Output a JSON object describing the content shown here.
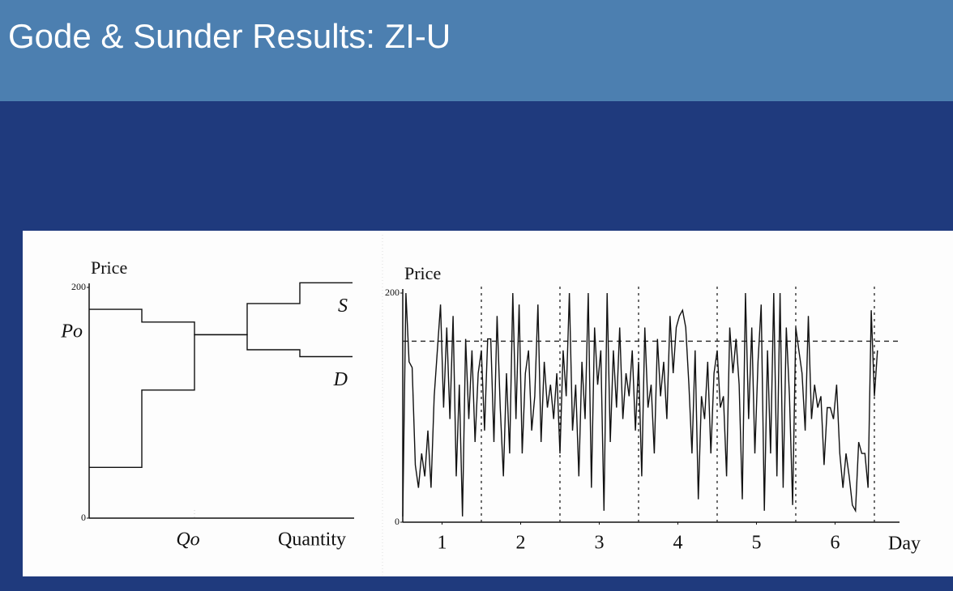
{
  "slide_title": "Gode & Sunder Results: ZI-U",
  "chart_data": [
    {
      "type": "line",
      "y_label": "Price",
      "x_label": "Quantity",
      "annotations": [
        "Po",
        "Qo"
      ],
      "xlim": [
        0,
        10
      ],
      "ylim": [
        0,
        200
      ],
      "yticks": [
        0,
        200
      ],
      "vlines": [
        4
      ],
      "series": [
        {
          "name": "S",
          "color": "#111111",
          "x": [
            0,
            2,
            2,
            4,
            4,
            6,
            6,
            8,
            8,
            10
          ],
          "values": [
            44,
            44,
            111,
            111,
            159,
            159,
            186,
            186,
            204,
            204
          ]
        },
        {
          "name": "D",
          "color": "#111111",
          "x": [
            0,
            2,
            2,
            4,
            4,
            6,
            6,
            8,
            8,
            10
          ],
          "values": [
            181,
            181,
            170,
            170,
            159,
            159,
            146,
            146,
            140,
            140
          ]
        }
      ]
    },
    {
      "type": "line",
      "y_label": "Price",
      "x_label": "Day",
      "xlim": [
        0,
        6.32
      ],
      "ylim": [
        0,
        200
      ],
      "yticks": [
        0,
        200
      ],
      "xticks": [
        {
          "value": 0.5,
          "label": "1"
        },
        {
          "value": 1.5,
          "label": "2"
        },
        {
          "value": 2.5,
          "label": "3"
        },
        {
          "value": 3.5,
          "label": "4"
        },
        {
          "value": 4.5,
          "label": "5"
        },
        {
          "value": 5.5,
          "label": "6"
        }
      ],
      "vlines": [
        1,
        2,
        3,
        4,
        5,
        6
      ],
      "hlines": [
        158
      ],
      "series": [
        {
          "color": "#111111",
          "x": [
            0,
            0.04,
            0.08,
            0.12,
            0.16,
            0.2,
            0.24,
            0.28,
            0.32,
            0.36,
            0.4,
            0.44,
            0.48,
            0.52,
            0.56,
            0.6,
            0.64,
            0.68,
            0.72,
            0.76,
            0.8,
            0.84,
            0.88,
            0.92,
            0.96,
            1,
            1.04,
            1.08,
            1.12,
            1.16,
            1.2,
            1.24,
            1.28,
            1.32,
            1.36,
            1.4,
            1.44,
            1.48,
            1.52,
            1.56,
            1.6,
            1.64,
            1.68,
            1.72,
            1.76,
            1.8,
            1.84,
            1.88,
            1.92,
            1.96,
            2,
            2.04,
            2.08,
            2.12,
            2.16,
            2.2,
            2.24,
            2.28,
            2.32,
            2.36,
            2.4,
            2.44,
            2.48,
            2.52,
            2.56,
            2.6,
            2.64,
            2.68,
            2.72,
            2.76,
            2.8,
            2.84,
            2.88,
            2.92,
            2.96,
            3,
            3.04,
            3.08,
            3.12,
            3.16,
            3.2,
            3.24,
            3.28,
            3.32,
            3.36,
            3.4,
            3.44,
            3.48,
            3.52,
            3.56,
            3.6,
            3.64,
            3.68,
            3.72,
            3.76,
            3.8,
            3.84,
            3.88,
            3.92,
            3.96,
            4,
            4.04,
            4.08,
            4.12,
            4.16,
            4.2,
            4.24,
            4.28,
            4.32,
            4.36,
            4.4,
            4.44,
            4.48,
            4.52,
            4.56,
            4.6,
            4.64,
            4.68,
            4.72,
            4.76,
            4.8,
            4.84,
            4.88,
            4.92,
            4.96,
            5,
            5.04,
            5.08,
            5.12,
            5.16,
            5.2,
            5.24,
            5.28,
            5.32,
            5.36,
            5.4,
            5.44,
            5.48,
            5.52,
            5.56,
            5.6,
            5.64,
            5.68,
            5.72,
            5.76,
            5.8,
            5.84,
            5.88,
            5.92,
            5.96,
            6,
            6.04
          ],
          "values": [
            5,
            200,
            140,
            135,
            50,
            30,
            60,
            40,
            80,
            30,
            110,
            150,
            190,
            100,
            170,
            90,
            180,
            40,
            120,
            5,
            160,
            90,
            150,
            70,
            130,
            150,
            80,
            160,
            160,
            70,
            180,
            100,
            40,
            130,
            60,
            200,
            90,
            190,
            60,
            130,
            150,
            80,
            110,
            190,
            70,
            140,
            100,
            120,
            90,
            130,
            60,
            150,
            110,
            200,
            80,
            120,
            40,
            140,
            90,
            200,
            30,
            170,
            120,
            150,
            10,
            200,
            70,
            150,
            100,
            170,
            90,
            130,
            110,
            150,
            80,
            140,
            40,
            170,
            100,
            120,
            60,
            160,
            110,
            140,
            90,
            180,
            130,
            170,
            180,
            185,
            170,
            120,
            60,
            150,
            20,
            110,
            90,
            140,
            60,
            130,
            150,
            100,
            110,
            40,
            170,
            130,
            160,
            120,
            20,
            200,
            90,
            170,
            60,
            140,
            190,
            10,
            150,
            60,
            200,
            40,
            200,
            30,
            170,
            110,
            15,
            170,
            150,
            130,
            80,
            180,
            90,
            120,
            100,
            110,
            50,
            100,
            100,
            90,
            120,
            60,
            30,
            60,
            40,
            15,
            10,
            70,
            60,
            60,
            30,
            185,
            110,
            150
          ]
        }
      ]
    }
  ]
}
